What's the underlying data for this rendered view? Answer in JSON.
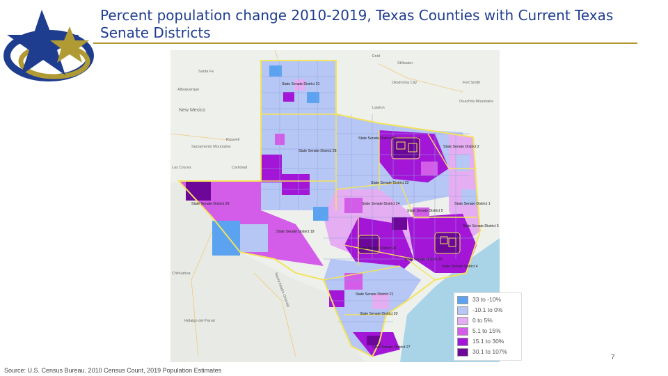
{
  "title": "Percent population change 2010-2019, Texas Counties with Current Texas Senate Districts",
  "page_number": "7",
  "source": "Source: U.S. Census Bureau. 2010 Census Count, 2019 Population Estimates",
  "colors": {
    "title": "#1f3d8f",
    "rule": "#b09a33",
    "district_outline": "#f3e35a",
    "water": "#a9d3e6",
    "background": "#eef0ec"
  },
  "legend": [
    {
      "label": "33 to -10%",
      "color": "#5ba3f0"
    },
    {
      "label": "-10.1 to 0%",
      "color": "#b7c7f5"
    },
    {
      "label": "0 to 5%",
      "color": "#e6aef2"
    },
    {
      "label": "5.1 to 15%",
      "color": "#d35ce9"
    },
    {
      "label": "15.1 to 30%",
      "color": "#a316d8"
    },
    {
      "label": "30.1 to 107%",
      "color": "#6c0799"
    }
  ],
  "places": {
    "new_mexico": "New Mexico",
    "oklahoma_city": "Oklahoma City",
    "lawton": "Lawton",
    "stillwater": "Stillwater",
    "enid": "Enid",
    "albuquerque": "Albuquerque",
    "santa_fe": "Santa Fe",
    "roswell": "Roswell",
    "carlsbad": "Carlsbad",
    "las_cruces": "Las Cruces",
    "chihuahua": "Chihuahua",
    "ouachita": "Ouachita Mountains",
    "fort_smith": "Fort Smith",
    "sacramento": "Sacramento Mountains",
    "sierra_madre": "Sierra Madre Oriental",
    "torreon": "Hidalgo del Parral"
  },
  "districts": [
    {
      "label": "State Senate District 31"
    },
    {
      "label": "State Senate District 28"
    },
    {
      "label": "State Senate District 30"
    },
    {
      "label": "State Senate District 22"
    },
    {
      "label": "State Senate District 29"
    },
    {
      "label": "State Senate District 19"
    },
    {
      "label": "State Senate District 24"
    },
    {
      "label": "State Senate District 5"
    },
    {
      "label": "State Senate District 18"
    },
    {
      "label": "State Senate District 21"
    },
    {
      "label": "State Senate District 27"
    },
    {
      "label": "State Senate District 1"
    },
    {
      "label": "State Senate District 3"
    },
    {
      "label": "State Senate District 4"
    },
    {
      "label": "State Senate District 20"
    },
    {
      "label": "State Senate District 26"
    },
    {
      "label": "State Senate District 2"
    }
  ]
}
